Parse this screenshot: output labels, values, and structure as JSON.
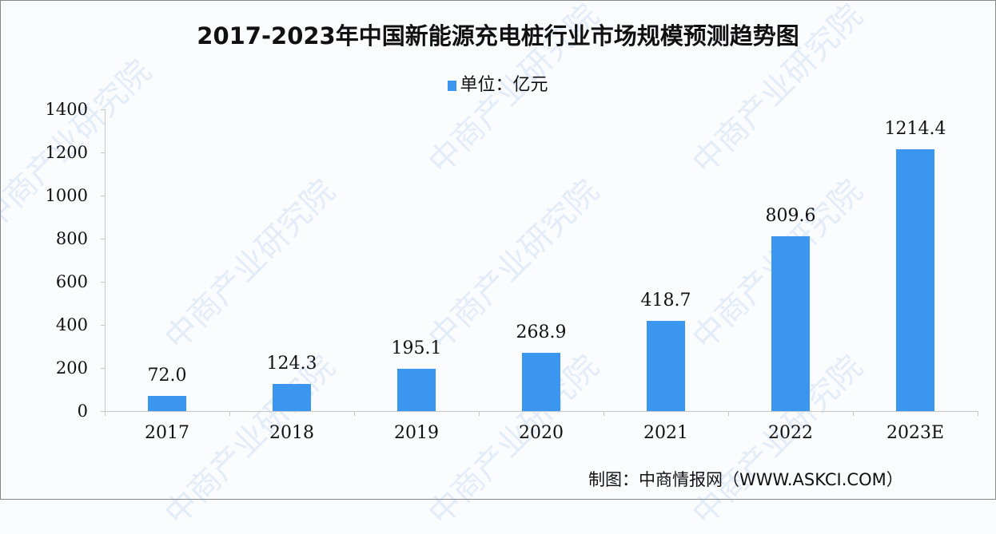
{
  "chart_data": {
    "type": "bar",
    "title": "2017-2023年中国新能源充电桩行业市场规模预测趋势图",
    "legend": [
      "单位：亿元"
    ],
    "categories": [
      "2017",
      "2018",
      "2019",
      "2020",
      "2021",
      "2022",
      "2023E"
    ],
    "values": [
      72.0,
      124.3,
      195.1,
      268.9,
      418.7,
      809.6,
      1214.4
    ],
    "value_labels": [
      "72.0",
      "124.3",
      "195.1",
      "268.9",
      "418.7",
      "809.6",
      "1214.4"
    ],
    "xlabel": "",
    "ylabel": "",
    "ylim": [
      0,
      1400
    ],
    "yticks": [
      "0",
      "200",
      "400",
      "600",
      "800",
      "1000",
      "1200",
      "1400"
    ],
    "grid": false,
    "legend_position": "top",
    "bar_color": "#3a96ee"
  },
  "source": "制图：中商情报网（WWW.ASKCI.COM）",
  "watermark": "中商产业研究院"
}
